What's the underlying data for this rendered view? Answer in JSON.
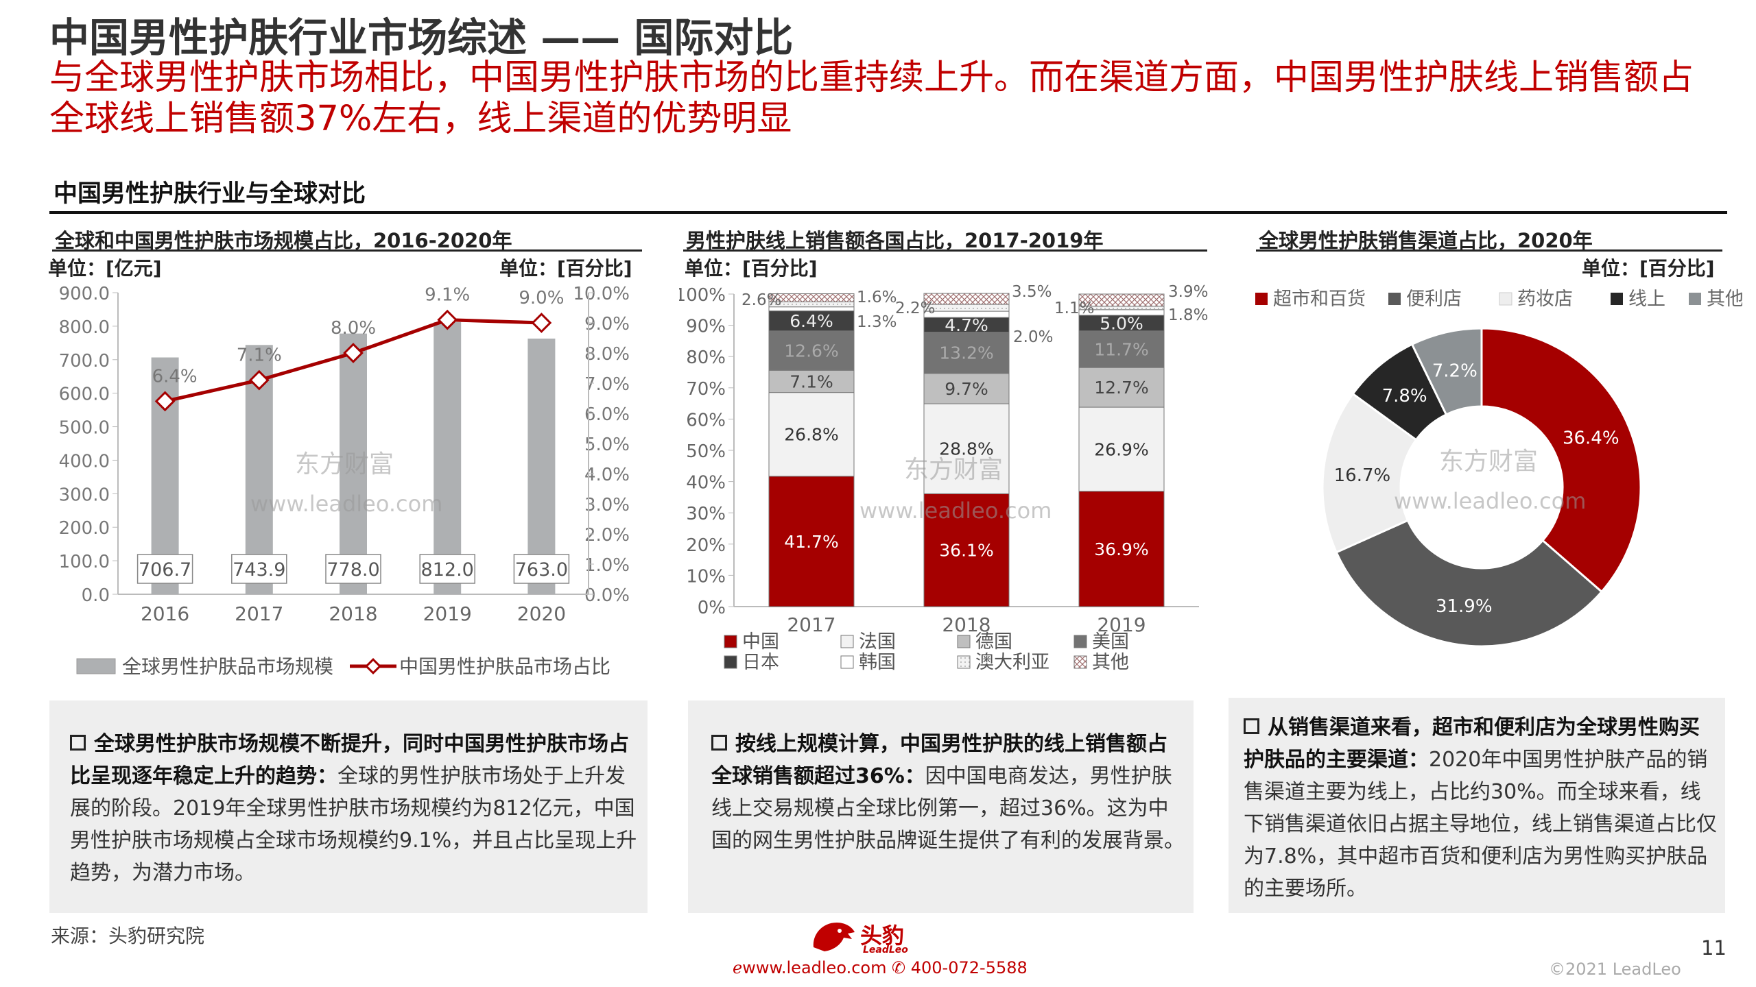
{
  "header": {
    "title": "中国男性护肤行业市场综述 —— 国际对比",
    "subtitle": "与全球男性护肤市场相比，中国男性护肤市场的比重持续上升。而在渠道方面，中国男性护肤线上销售额占全球线上销售额37%左右，线上渠道的优势明显"
  },
  "section_title": "中国男性护肤行业与全球对比",
  "watermarks": {
    "cn": "东方财富",
    "url": "www.leadleo.com"
  },
  "colors": {
    "accent": "#c00000",
    "bar_gray": "#aeb0b2",
    "dark_gray": "#595959",
    "mid_gray": "#7f7f7f"
  },
  "chart_data": [
    {
      "type": "bar",
      "title": "全球和中国男性护肤市场规模占比，2016-2020年",
      "unit_left": "单位：[亿元]",
      "unit_right": "单位：[百分比]",
      "categories": [
        "2016",
        "2017",
        "2018",
        "2019",
        "2020"
      ],
      "y_ticks": [
        "900.0",
        "800.0",
        "700.0",
        "600.0",
        "500.0",
        "400.0",
        "300.0",
        "200.0",
        "100.0",
        "0.0"
      ],
      "y2_ticks": [
        "10.0%",
        "9.0%",
        "8.0%",
        "7.0%",
        "6.0%",
        "5.0%",
        "4.0%",
        "3.0%",
        "2.0%",
        "1.0%",
        "0.0%"
      ],
      "ylim": [
        0,
        900
      ],
      "y2lim": [
        0,
        10
      ],
      "series": [
        {
          "name": "全球男性护肤品市场规模",
          "kind": "bar",
          "values": [
            706.7,
            743.9,
            778.0,
            812.0,
            763.0
          ],
          "labels": [
            "706.7",
            "743.9",
            "778.0",
            "812.0",
            "763.0"
          ]
        },
        {
          "name": "中国男性护肤品市场占比",
          "kind": "line",
          "values": [
            6.4,
            7.1,
            8.0,
            9.1,
            9.0
          ],
          "labels": [
            "6.4%",
            "7.1%",
            "8.0%",
            "9.1%",
            "9.0%"
          ]
        }
      ]
    },
    {
      "type": "bar",
      "stacked": true,
      "title": "男性护肤线上销售额各国占比，2017-2019年",
      "unit_left": "单位：[百分比]",
      "categories": [
        "2017",
        "2018",
        "2019"
      ],
      "y_ticks": [
        "100%",
        "90%",
        "80%",
        "70%",
        "60%",
        "50%",
        "40%",
        "30%",
        "20%",
        "10%",
        "0%"
      ],
      "ylim": [
        0,
        100
      ],
      "series": [
        {
          "name": "中国",
          "values": [
            41.7,
            36.1,
            36.9
          ],
          "labels": [
            "41.7%",
            "36.1%",
            "36.9%"
          ]
        },
        {
          "name": "法国",
          "values": [
            26.8,
            28.8,
            26.9
          ],
          "labels": [
            "26.8%",
            "28.8%",
            "26.9%"
          ]
        },
        {
          "name": "德国",
          "values": [
            7.1,
            9.7,
            12.7
          ],
          "labels": [
            "7.1%",
            "9.7%",
            "12.7%"
          ]
        },
        {
          "name": "美国",
          "values": [
            12.6,
            13.2,
            11.7
          ],
          "labels": [
            "12.6%",
            "13.2%",
            "11.7%"
          ]
        },
        {
          "name": "日本",
          "values": [
            6.4,
            4.7,
            5.0
          ],
          "labels": [
            "6.4%",
            "4.7%",
            "5.0%"
          ]
        },
        {
          "name": "韩国",
          "values": [
            1.3,
            2.0,
            1.8
          ],
          "labels": [
            "1.3%",
            "2.0%",
            "1.8%"
          ]
        },
        {
          "name": "澳大利亚",
          "values": [
            1.6,
            2.2,
            1.1
          ],
          "labels": [
            "1.6%",
            "2.2%",
            "1.1%"
          ]
        },
        {
          "name": "其他",
          "values": [
            2.6,
            3.5,
            3.9
          ],
          "labels": [
            "2.6%",
            "3.5%",
            "3.9%"
          ]
        }
      ]
    },
    {
      "type": "pie",
      "donut": true,
      "title": "全球男性护肤销售渠道占比，2020年",
      "unit_right": "单位：[百分比]",
      "slices": [
        {
          "name": "超市和百货",
          "value": 36.4,
          "label": "36.4%",
          "color": "#a50000"
        },
        {
          "name": "便利店",
          "value": 31.9,
          "label": "31.9%",
          "color": "#595959"
        },
        {
          "name": "药妆店",
          "value": 16.7,
          "label": "16.7%",
          "color": "#eeeeee"
        },
        {
          "name": "线上",
          "value": 7.8,
          "label": "7.8%",
          "color": "#262626"
        },
        {
          "name": "其他",
          "value": 7.2,
          "label": "7.2%",
          "color": "#8c9194"
        }
      ]
    }
  ],
  "notes": [
    {
      "bold": "全球男性护肤市场规模不断提升，同时中国男性护肤市场占比呈现逐年稳定上升的趋势：",
      "text": "全球的男性护肤市场处于上升发展的阶段。2019年全球男性护肤市场规模约为812亿元，中国男性护肤市场规模占全球市场规模约9.1%，并且占比呈现上升趋势，为潜力市场。"
    },
    {
      "bold": "按线上规模计算，中国男性护肤的线上销售额占全球销售额超过36%：",
      "text": "因中国电商发达，男性护肤线上交易规模占全球比例第一，超过36%。这为中国的网生男性护肤品牌诞生提供了有利的发展背景。"
    },
    {
      "bold": "从销售渠道来看，超市和便利店为全球男性购买护肤品的主要渠道：",
      "text": "2020年中国男性护肤产品的销售渠道主要为线上，占比约30%。而全球来看，线下销售渠道依旧占据主导地位，线上销售渠道占比仅为7.8%，其中超市百货和便利店为男性购买护肤品的主要场所。"
    }
  ],
  "footer": {
    "source": "来源：头豹研究院",
    "page_number": "11",
    "copyright": "©2021 LeadLeo",
    "website": "www.leadleo.com",
    "phone": "400-072-5588",
    "logo_text": "头豹",
    "logo_sub": "LeadLeo"
  }
}
